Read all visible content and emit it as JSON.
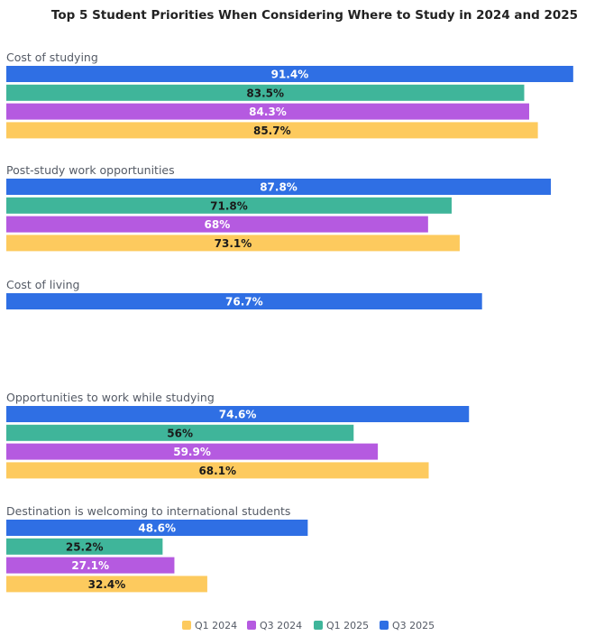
{
  "chart_data": {
    "type": "bar",
    "orientation": "horizontal",
    "title": "Top 5 Student Priorities When Considering Where to Study in 2024 and 2025",
    "xlabel": "",
    "ylabel": "",
    "xlim": [
      0,
      100
    ],
    "grid": false,
    "legend_position": "bottom-center",
    "categories": [
      "Cost of studying",
      "Post-study work opportunities",
      "Cost of living",
      "Opportunities to work while studying",
      "Destination is welcoming to international students"
    ],
    "series": [
      {
        "name": "Q3 2025",
        "color": "#2f6fe4",
        "label_color": "#ffffff",
        "values": [
          91.4,
          87.8,
          76.7,
          74.6,
          48.6
        ],
        "labels": [
          "91.4%",
          "87.8%",
          "76.7%",
          "74.6%",
          "48.6%"
        ]
      },
      {
        "name": "Q1 2025",
        "color": "#3fb59a",
        "label_color": "#1a1a1a",
        "values": [
          83.5,
          71.8,
          null,
          56,
          25.2
        ],
        "labels": [
          "83.5%",
          "71.8%",
          "",
          "56%",
          "25.2%"
        ]
      },
      {
        "name": "Q3 2024",
        "color": "#b55ae0",
        "label_color": "#ffffff",
        "values": [
          84.3,
          68,
          null,
          59.9,
          27.1
        ],
        "labels": [
          "84.3%",
          "68%",
          "",
          "59.9%",
          "27.1%"
        ]
      },
      {
        "name": "Q1 2024",
        "color": "#fdca5e",
        "label_color": "#1a1a1a",
        "values": [
          85.7,
          73.1,
          null,
          68.1,
          32.4
        ],
        "labels": [
          "85.7%",
          "73.1%",
          "",
          "68.1%",
          "32.4%"
        ]
      }
    ],
    "legend": [
      {
        "name": "Q1 2024",
        "color": "#fdca5e"
      },
      {
        "name": "Q3 2024",
        "color": "#b55ae0"
      },
      {
        "name": "Q1 2025",
        "color": "#3fb59a"
      },
      {
        "name": "Q3 2025",
        "color": "#2f6fe4"
      }
    ]
  }
}
